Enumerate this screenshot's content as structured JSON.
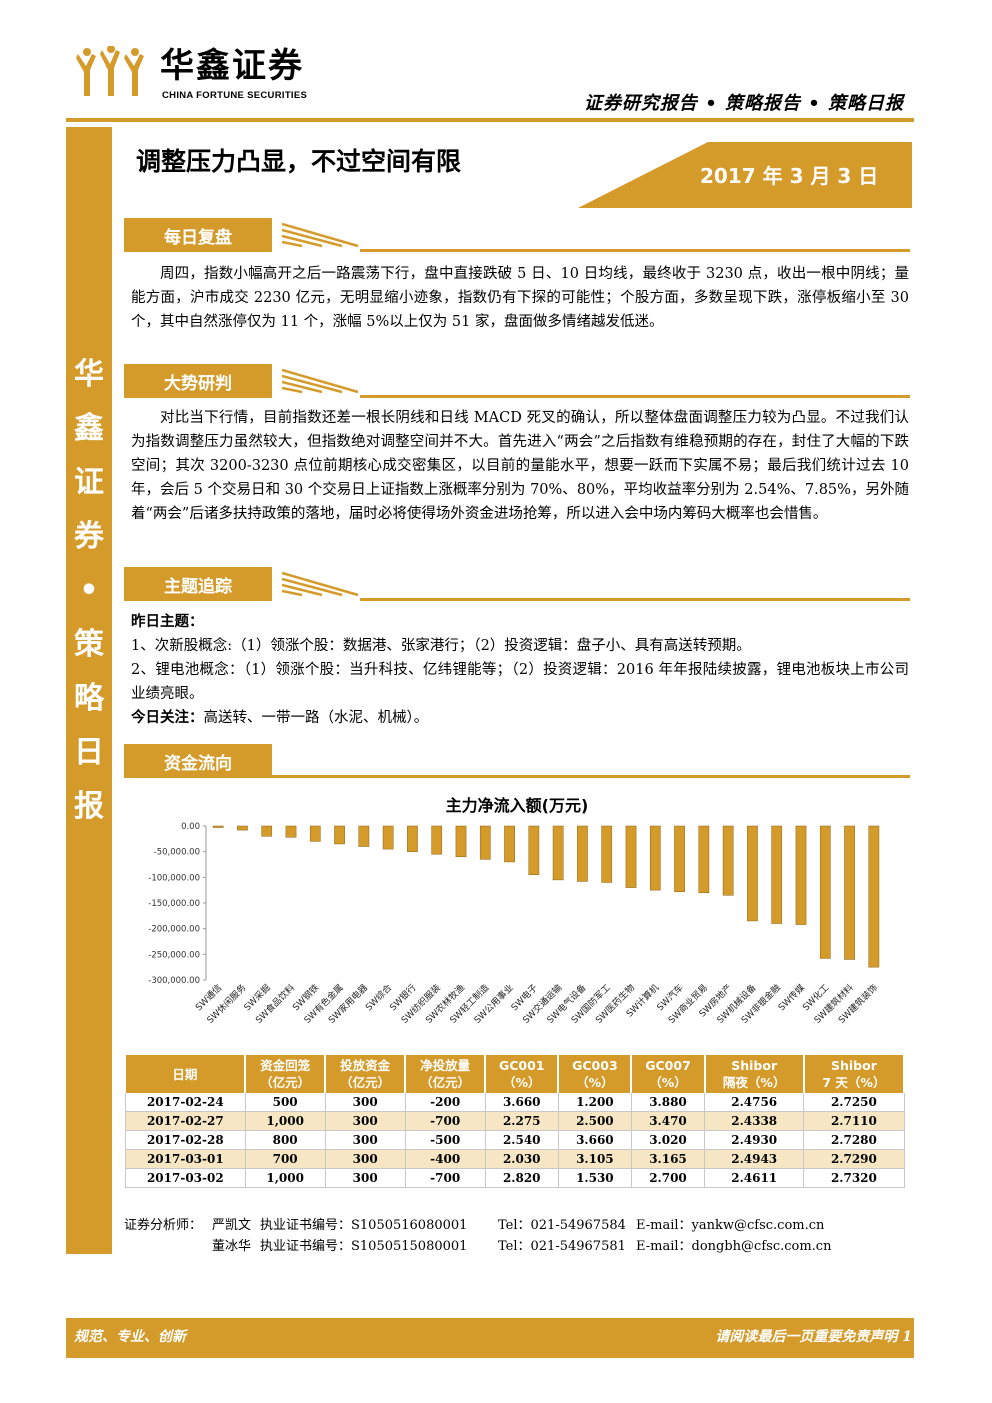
{
  "header": {
    "logo_cn": "华鑫证券",
    "logo_en": "CHINA FORTUNE SECURITIES",
    "report_type": "证券研究报告 • 策略报告 • 策略日报"
  },
  "sidebar": {
    "text": "华\n鑫\n证\n券\n•\n策\n略\n日\n报"
  },
  "title": "调整压力凸显，不过空间有限",
  "date": "2017 年 3 月 3 日",
  "sections": {
    "daily_review": {
      "label": "每日复盘",
      "text": "周四，指数小幅高开之后一路震荡下行，盘中直接跌破 5 日、10 日均线，最终收于 3230 点，收出一根中阴线；量能方面，沪市成交 2230 亿元，无明显缩小迹象，指数仍有下探的可能性；个股方面，多数呈现下跌，涨停板缩小至 30 个，其中自然涨停仅为 11 个，涨幅 5%以上仅为 51 家，盘面做多情绪越发低迷。"
    },
    "trend": {
      "label": "大势研判",
      "text": "对比当下行情，目前指数还差一根长阴线和日线 MACD 死叉的确认，所以整体盘面调整压力较为凸显。不过我们认为指数调整压力虽然较大，但指数绝对调整空间并不大。首先进入“两会”之后指数有维稳预期的存在，封住了大幅的下跌空间；其次 3200-3230 点位前期核心成交密集区，以目前的量能水平，想要一跃而下实属不易；最后我们统计过去 10 年，会后 5 个交易日和 30 个交易日上证指数上涨概率分别为 70%、80%，平均收益率分别为 2.54%、7.85%，另外随着“两会”后诸多扶持政策的落地，届时必将使得场外资金进场抢筹，所以进入会中场内筹码大概率也会惜售。"
    },
    "theme": {
      "label": "主题追踪",
      "yesterday_label": "昨日主题：",
      "item1": "1、次新股概念:（1）领涨个股：数据港、张家港行；（2）投资逻辑：盘子小、具有高送转预期。",
      "item2": "2、锂电池概念：（1）领涨个股：当升科技、亿纬锂能等；（2）投资逻辑：2016 年年报陆续披露，锂电池板块上市公司业绩亮眼。",
      "today_label": "今日关注：",
      "today_text": "高送转、一带一路（水泥、机械）。"
    },
    "fund_flow": {
      "label": "资金流向"
    }
  },
  "chart_data": {
    "type": "bar",
    "title": "主力净流入额(万元)",
    "categories": [
      "SW通信",
      "SW休闲服务",
      "SW采掘",
      "SW食品饮料",
      "SW钢铁",
      "SW有色金属",
      "SW家用电器",
      "SW综合",
      "SW银行",
      "SW纺织服装",
      "SW农林牧渔",
      "SW轻工制造",
      "SW公用事业",
      "SW电子",
      "SW交通运输",
      "SW电气设备",
      "SW国防军工",
      "SW医药生物",
      "SW计算机",
      "SW汽车",
      "SW商业贸易",
      "SW房地产",
      "SW机械设备",
      "SW非银金融",
      "SW传媒",
      "SW化工",
      "SW建筑材料",
      "SW建筑装饰"
    ],
    "values": [
      -3000,
      -8000,
      -20000,
      -22000,
      -30000,
      -35000,
      -40000,
      -45000,
      -50000,
      -55000,
      -60000,
      -65000,
      -70000,
      -95000,
      -105000,
      -108000,
      -110000,
      -120000,
      -125000,
      -128000,
      -130000,
      -135000,
      -185000,
      -190000,
      -192000,
      -258000,
      -260000,
      -275000
    ],
    "ylim": [
      -300000,
      0
    ],
    "yticks": [
      "0.00",
      "-50,000.00",
      "-100,000.00",
      "-150,000.00",
      "-200,000.00",
      "-250,000.00",
      "-300,000.00"
    ],
    "bar_color": "#d49a2a"
  },
  "table": {
    "headers": [
      [
        "日期",
        ""
      ],
      [
        "资金回笼",
        "（亿元）"
      ],
      [
        "投放资金",
        "（亿元）"
      ],
      [
        "净投放量",
        "（亿元）"
      ],
      [
        "GC001",
        "（%）"
      ],
      [
        "GC003",
        "（%）"
      ],
      [
        "GC007",
        "（%）"
      ],
      [
        "Shibor",
        "隔夜（%）"
      ],
      [
        "Shibor",
        "7 天（%）"
      ]
    ],
    "rows": [
      [
        "2017-02-24",
        "500",
        "300",
        "-200",
        "3.660",
        "1.200",
        "3.880",
        "2.4756",
        "2.7250"
      ],
      [
        "2017-02-27",
        "1,000",
        "300",
        "-700",
        "2.275",
        "2.500",
        "3.470",
        "2.4338",
        "2.7110"
      ],
      [
        "2017-02-28",
        "800",
        "300",
        "-500",
        "2.540",
        "3.660",
        "3.020",
        "2.4930",
        "2.7280"
      ],
      [
        "2017-03-01",
        "700",
        "300",
        "-400",
        "2.030",
        "3.105",
        "3.165",
        "2.4943",
        "2.7290"
      ],
      [
        "2017-03-02",
        "1,000",
        "300",
        "-700",
        "2.820",
        "1.530",
        "2.700",
        "2.4611",
        "2.7320"
      ]
    ]
  },
  "analysts": [
    {
      "role": "证券分析师：",
      "name": "严凯文",
      "cert": "执业证书编号：S1050516080001",
      "tel": "Tel：021-54967584",
      "email": "E-mail：yankw@cfsc.com.cn"
    },
    {
      "role": "",
      "name": "董冰华",
      "cert": "执业证书编号：S1050515080001",
      "tel": "Tel：021-54967581",
      "email": "E-mail：dongbh@cfsc.com.cn"
    }
  ],
  "footer": {
    "left": "规范、专业、创新",
    "right": "请阅读最后一页重要免责声明 1"
  }
}
